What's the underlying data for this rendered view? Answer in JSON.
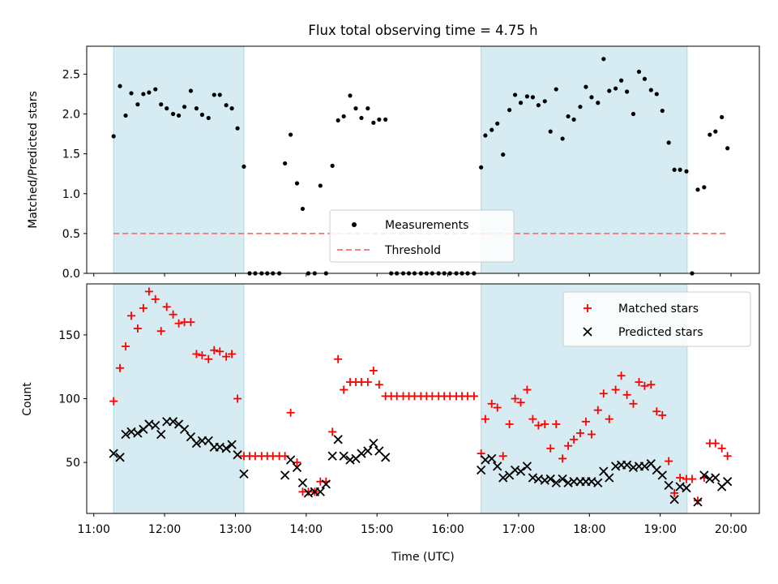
{
  "title": "Flux total observing time = 4.75 h",
  "colors": {
    "shade": "#add8e6",
    "threshold": "#ff6f6f",
    "matched": "#ff0000",
    "predicted": "#000000",
    "measurement": "#000000"
  },
  "chart_data": [
    {
      "type": "scatter",
      "ylabel": "Matched/Predicted stars",
      "xlim": [
        10.9,
        20.4
      ],
      "ylim": [
        0,
        2.85
      ],
      "yticks": [
        {
          "v": 0,
          "label": "0.0"
        },
        {
          "v": 0.5,
          "label": "0.5"
        },
        {
          "v": 1.0,
          "label": "1.0"
        },
        {
          "v": 1.5,
          "label": "1.5"
        },
        {
          "v": 2.0,
          "label": "2.0"
        },
        {
          "v": 2.5,
          "label": "2.5"
        }
      ],
      "shaded_ranges": [
        [
          11.28,
          13.12
        ],
        [
          16.47,
          19.38
        ]
      ],
      "threshold": {
        "name": "Threshold",
        "y": 0.5,
        "x_range": [
          11.28,
          19.97
        ]
      },
      "legend": {
        "position": "lower center",
        "entries": [
          "Measurements",
          "Threshold"
        ]
      },
      "series": [
        {
          "name": "Measurements",
          "x": [
            11.28,
            11.37,
            11.45,
            11.53,
            11.62,
            11.7,
            11.78,
            11.87,
            11.95,
            12.03,
            12.12,
            12.2,
            12.28,
            12.37,
            12.45,
            12.53,
            12.62,
            12.7,
            12.78,
            12.87,
            12.95,
            13.03,
            13.12,
            13.2,
            13.28,
            13.37,
            13.45,
            13.53,
            13.62,
            13.7,
            13.78,
            13.87,
            13.95,
            14.03,
            14.12,
            14.2,
            14.28,
            14.37,
            14.45,
            14.53,
            14.62,
            14.7,
            14.78,
            14.87,
            14.95,
            15.03,
            15.12,
            15.2,
            15.28,
            15.37,
            15.45,
            15.53,
            15.62,
            15.7,
            15.78,
            15.87,
            15.95,
            16.03,
            16.12,
            16.2,
            16.28,
            16.37,
            16.47,
            16.53,
            16.62,
            16.7,
            16.78,
            16.87,
            16.95,
            17.03,
            17.12,
            17.2,
            17.28,
            17.37,
            17.45,
            17.53,
            17.62,
            17.7,
            17.78,
            17.87,
            17.95,
            18.03,
            18.12,
            18.2,
            18.28,
            18.37,
            18.45,
            18.53,
            18.62,
            18.7,
            18.78,
            18.87,
            18.95,
            19.03,
            19.12,
            19.2,
            19.28,
            19.37,
            19.45,
            19.53,
            19.62,
            19.7,
            19.78,
            19.87,
            19.95
          ],
          "y": [
            1.72,
            2.35,
            1.98,
            2.26,
            2.12,
            2.25,
            2.27,
            2.31,
            2.12,
            2.07,
            2.0,
            1.98,
            2.09,
            2.29,
            2.07,
            1.99,
            1.95,
            2.24,
            2.24,
            2.11,
            2.07,
            1.82,
            1.34,
            0.0,
            0.0,
            0.0,
            0.0,
            0.0,
            0.0,
            1.38,
            1.74,
            1.13,
            0.81,
            0.0,
            0.0,
            1.1,
            0.0,
            1.35,
            1.92,
            1.97,
            2.23,
            2.07,
            1.95,
            2.07,
            1.89,
            1.93,
            1.93,
            0.0,
            0.0,
            0.0,
            0.0,
            0.0,
            0.0,
            0.0,
            0.0,
            0.0,
            0.0,
            0.0,
            0.0,
            0.0,
            0.0,
            0.0,
            1.33,
            1.73,
            1.8,
            1.88,
            1.49,
            2.05,
            2.24,
            2.14,
            2.22,
            2.21,
            2.11,
            2.16,
            1.78,
            2.31,
            1.69,
            1.97,
            1.93,
            2.09,
            2.34,
            2.21,
            2.14,
            2.69,
            2.29,
            2.32,
            2.42,
            2.28,
            2.0,
            2.53,
            2.44,
            2.3,
            2.25,
            2.04,
            1.64,
            1.3,
            1.3,
            1.28,
            0.0,
            1.05,
            1.08,
            1.74,
            1.78,
            1.96,
            1.57
          ]
        }
      ]
    },
    {
      "type": "scatter",
      "xlabel": "Time (UTC)",
      "ylabel": "Count",
      "xlim": [
        10.9,
        20.4
      ],
      "ylim": [
        10,
        190
      ],
      "yticks": [
        {
          "v": 50,
          "label": "50"
        },
        {
          "v": 100,
          "label": "100"
        },
        {
          "v": 150,
          "label": "150"
        }
      ],
      "xticks": [
        {
          "v": 11,
          "label": "11:00"
        },
        {
          "v": 12,
          "label": "12:00"
        },
        {
          "v": 13,
          "label": "13:00"
        },
        {
          "v": 14,
          "label": "14:00"
        },
        {
          "v": 15,
          "label": "15:00"
        },
        {
          "v": 16,
          "label": "16:00"
        },
        {
          "v": 17,
          "label": "17:00"
        },
        {
          "v": 18,
          "label": "18:00"
        },
        {
          "v": 19,
          "label": "19:00"
        },
        {
          "v": 20,
          "label": "20:00"
        }
      ],
      "shaded_ranges": [
        [
          11.28,
          13.12
        ],
        [
          16.47,
          19.38
        ]
      ],
      "legend": {
        "position": "upper right",
        "entries": [
          "Matched stars",
          "Predicted stars"
        ]
      },
      "series": [
        {
          "name": "Matched stars",
          "marker": "plus",
          "x": [
            11.28,
            11.37,
            11.45,
            11.53,
            11.62,
            11.7,
            11.78,
            11.87,
            11.95,
            12.03,
            12.12,
            12.2,
            12.28,
            12.37,
            12.45,
            12.53,
            12.62,
            12.7,
            12.78,
            12.87,
            12.95,
            13.03,
            13.12,
            13.2,
            13.28,
            13.37,
            13.45,
            13.53,
            13.62,
            13.7,
            13.78,
            13.87,
            13.95,
            14.03,
            14.12,
            14.2,
            14.28,
            14.37,
            14.45,
            14.53,
            14.62,
            14.7,
            14.78,
            14.87,
            14.95,
            15.03,
            15.12,
            15.2,
            15.28,
            15.37,
            15.45,
            15.53,
            15.62,
            15.7,
            15.78,
            15.87,
            15.95,
            16.03,
            16.12,
            16.2,
            16.28,
            16.37,
            16.47,
            16.53,
            16.62,
            16.7,
            16.78,
            16.87,
            16.95,
            17.03,
            17.12,
            17.2,
            17.28,
            17.37,
            17.45,
            17.53,
            17.62,
            17.7,
            17.78,
            17.87,
            17.95,
            18.03,
            18.12,
            18.2,
            18.28,
            18.37,
            18.45,
            18.53,
            18.62,
            18.7,
            18.78,
            18.87,
            18.95,
            19.03,
            19.12,
            19.2,
            19.28,
            19.37,
            19.45,
            19.53,
            19.62,
            19.7,
            19.78,
            19.87,
            19.95
          ],
          "y": [
            98,
            124,
            141,
            165,
            155,
            171,
            184,
            178,
            153,
            172,
            166,
            159,
            160,
            160,
            135,
            134,
            131,
            138,
            137,
            133,
            135,
            100,
            55,
            55,
            55,
            55,
            55,
            55,
            55,
            55,
            89,
            50,
            27,
            27,
            27,
            35,
            35,
            74,
            131,
            107,
            113,
            113,
            113,
            113,
            122,
            111,
            102,
            102,
            102,
            102,
            102,
            102,
            102,
            102,
            102,
            102,
            102,
            102,
            102,
            102,
            102,
            102,
            57,
            84,
            96,
            93,
            55,
            80,
            100,
            97,
            107,
            84,
            79,
            80,
            61,
            80,
            53,
            63,
            68,
            73,
            82,
            72,
            91,
            104,
            84,
            107,
            118,
            103,
            96,
            113,
            110,
            111,
            90,
            87,
            51,
            26,
            38,
            37,
            37,
            20,
            38,
            65,
            65,
            61,
            55
          ]
        },
        {
          "name": "Predicted stars",
          "marker": "x",
          "x": [
            11.28,
            11.37,
            11.45,
            11.53,
            11.62,
            11.7,
            11.78,
            11.87,
            11.95,
            12.03,
            12.12,
            12.2,
            12.28,
            12.37,
            12.45,
            12.53,
            12.62,
            12.7,
            12.78,
            12.87,
            12.95,
            13.03,
            13.12,
            13.7,
            13.78,
            13.87,
            13.95,
            14.03,
            14.12,
            14.2,
            14.28,
            14.37,
            14.45,
            14.53,
            14.62,
            14.7,
            14.78,
            14.87,
            14.95,
            15.03,
            15.12,
            16.47,
            16.53,
            16.62,
            16.7,
            16.78,
            16.87,
            16.95,
            17.03,
            17.12,
            17.2,
            17.28,
            17.37,
            17.45,
            17.53,
            17.62,
            17.7,
            17.78,
            17.87,
            17.95,
            18.03,
            18.12,
            18.2,
            18.28,
            18.37,
            18.45,
            18.53,
            18.62,
            18.7,
            18.78,
            18.87,
            18.95,
            19.03,
            19.12,
            19.2,
            19.28,
            19.37,
            19.53,
            19.62,
            19.7,
            19.78,
            19.87,
            19.95
          ],
          "y": [
            57,
            54,
            72,
            74,
            73,
            76,
            80,
            79,
            72,
            82,
            82,
            80,
            76,
            70,
            65,
            67,
            67,
            62,
            62,
            61,
            64,
            56,
            41,
            40,
            52,
            46,
            34,
            26,
            27,
            27,
            33,
            55,
            68,
            55,
            52,
            53,
            57,
            59,
            65,
            59,
            54,
            44,
            52,
            53,
            47,
            38,
            40,
            44,
            43,
            47,
            38,
            37,
            36,
            37,
            34,
            37,
            34,
            35,
            35,
            35,
            35,
            34,
            43,
            38,
            47,
            48,
            48,
            46,
            47,
            47,
            49,
            44,
            40,
            32,
            21,
            31,
            30,
            19,
            40,
            37,
            38,
            31,
            35
          ]
        }
      ]
    }
  ]
}
